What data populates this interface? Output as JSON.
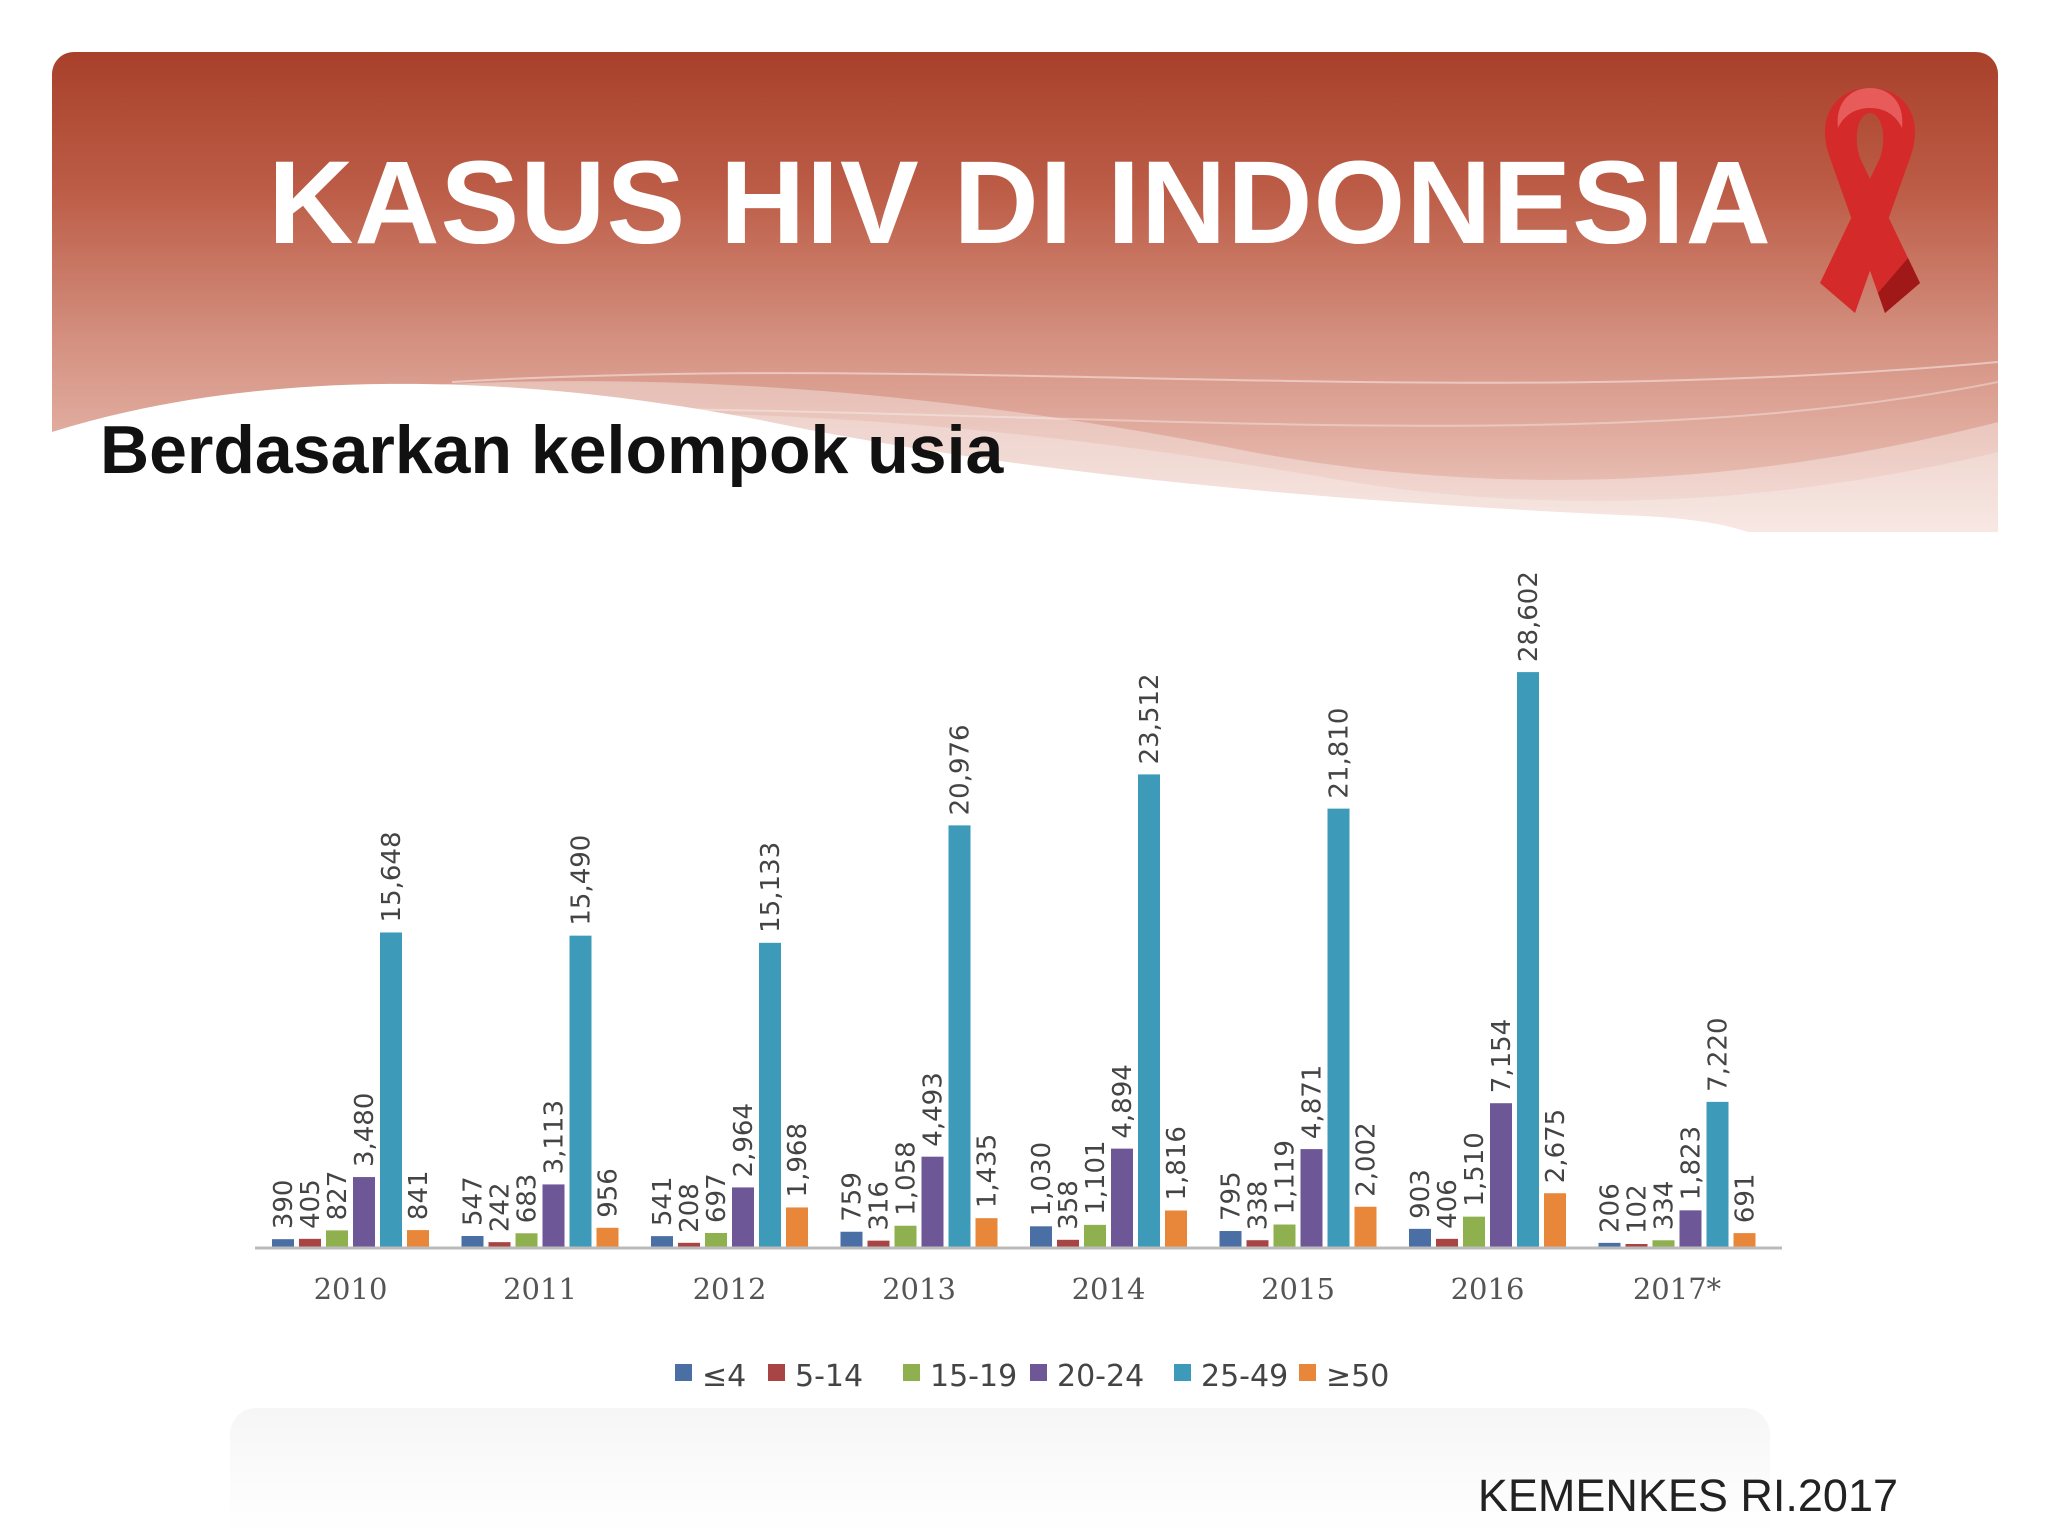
{
  "slide": {
    "title": "KASUS HIV DI INDONESIA",
    "subtitle": "Berdasarkan kelompok usia",
    "source": "KEMENKES RI.2017"
  },
  "icons": {
    "ribbon": "red-awareness-ribbon-icon"
  },
  "colors": {
    "header_dark": "#a8402a",
    "header_light": "#efcfc6",
    "ribbon": "#d42a2a"
  },
  "chart_data": {
    "type": "bar",
    "title": "",
    "xlabel": "",
    "ylabel": "",
    "ylim": [
      0,
      30000
    ],
    "grid": false,
    "legend_position": "bottom",
    "value_labels": "rotated vertical above bars",
    "categories": [
      "2010",
      "2011",
      "2012",
      "2013",
      "2014",
      "2015",
      "2016",
      "2017*"
    ],
    "series": [
      {
        "name": "≤4",
        "color": "#4a6fa5",
        "values": [
          390,
          547,
          541,
          759,
          1030,
          795,
          903,
          206
        ],
        "labels": [
          "390",
          "547",
          "541",
          "759",
          "1,030",
          "795",
          "903",
          "206"
        ]
      },
      {
        "name": "5-14",
        "color": "#a84444",
        "values": [
          405,
          242,
          208,
          316,
          358,
          338,
          406,
          102
        ],
        "labels": [
          "405",
          "242",
          "208",
          "316",
          "358",
          "338",
          "406",
          "102"
        ]
      },
      {
        "name": "15-19",
        "color": "#8fb04e",
        "values": [
          827,
          683,
          697,
          1058,
          1101,
          1119,
          1510,
          334
        ],
        "labels": [
          "827",
          "683",
          "697",
          "1,058",
          "1,101",
          "1,119",
          "1,510",
          "334"
        ]
      },
      {
        "name": "20-24",
        "color": "#6e5797",
        "values": [
          3480,
          3113,
          2964,
          4493,
          4894,
          4871,
          7154,
          1823
        ],
        "labels": [
          "3,480",
          "3,113",
          "2,964",
          "4,493",
          "4,894",
          "4,871",
          "7,154",
          "1,823"
        ]
      },
      {
        "name": "25-49",
        "color": "#3d9ab8",
        "values": [
          15648,
          15490,
          15133,
          20976,
          23512,
          21810,
          28602,
          7220
        ],
        "labels": [
          "15,648",
          "15,490",
          "15,133",
          "20,976",
          "23,512",
          "21,810",
          "28,602",
          "7,220"
        ]
      },
      {
        "name": "≥50",
        "color": "#e8873a",
        "values": [
          841,
          956,
          1968,
          1435,
          1816,
          2002,
          2675,
          691
        ],
        "labels": [
          "841",
          "956",
          "1,968",
          "1,435",
          "1,816",
          "2,002",
          "2,675",
          "691"
        ]
      }
    ]
  }
}
